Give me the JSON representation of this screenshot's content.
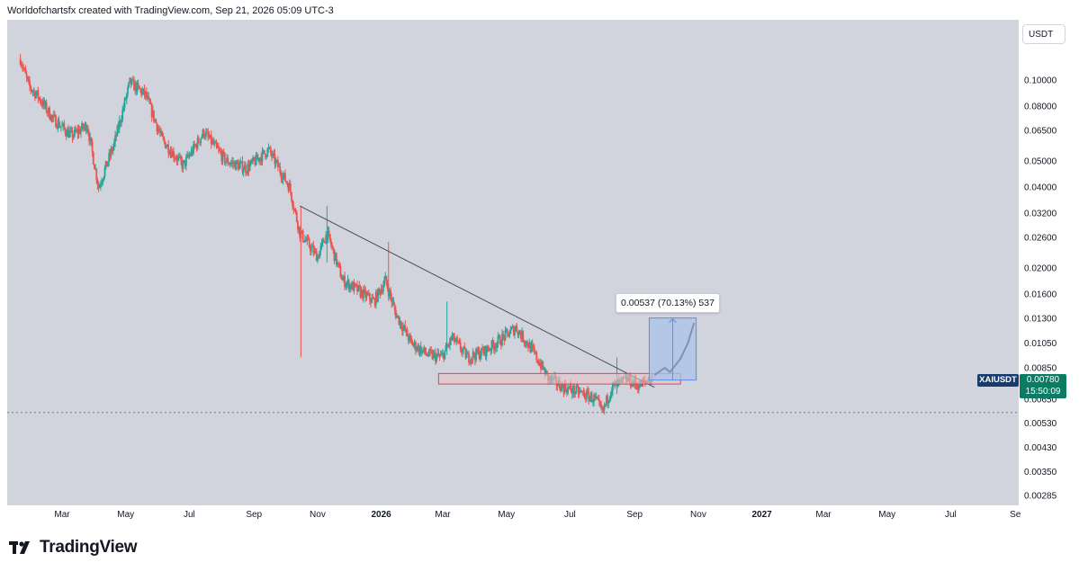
{
  "header": {
    "attribution": "Worldofchartsfx created with TradingView.com, Sep 21, 2026 05:09 UTC-3"
  },
  "currency_button": "USDT",
  "symbol_tag": "XAIUSDT",
  "price_tag": {
    "price": "0.00780",
    "countdown": "15:50:09"
  },
  "measure_label": "0.00537 (70.13%) 537",
  "brand": "TradingView",
  "colors": {
    "up": "#26a69a",
    "down": "#ef5350",
    "plot_bg": "#d1d4dc",
    "trendline": "#4a4e5a",
    "measure_fill": "#a9c3ea",
    "measure_line": "#5b8ee6",
    "support_box": "#e9c3c8",
    "support_border": "#d04a59",
    "projection": "#000000"
  },
  "chart_data": {
    "type": "candlestick",
    "symbol": "XAIUSDT",
    "y_axis": {
      "scale": "log",
      "ticks": [
        "0.10000",
        "0.08000",
        "0.06500",
        "0.05000",
        "0.04000",
        "0.03200",
        "0.02600",
        "0.02000",
        "0.01600",
        "0.01300",
        "0.01050",
        "0.00850",
        "0.00650",
        "0.00530",
        "0.00430",
        "0.00350",
        "0.00285"
      ],
      "range": [
        0.0027,
        0.13
      ]
    },
    "x_axis": {
      "ticks": [
        {
          "label": "Mar",
          "bold": false
        },
        {
          "label": "May",
          "bold": false
        },
        {
          "label": "Jul",
          "bold": false
        },
        {
          "label": "Sep",
          "bold": false
        },
        {
          "label": "Nov",
          "bold": false
        },
        {
          "label": "2026",
          "bold": true
        },
        {
          "label": "Mar",
          "bold": false
        },
        {
          "label": "May",
          "bold": false
        },
        {
          "label": "Jul",
          "bold": false
        },
        {
          "label": "Sep",
          "bold": false
        },
        {
          "label": "Nov",
          "bold": false
        },
        {
          "label": "2027",
          "bold": true
        },
        {
          "label": "Mar",
          "bold": false
        },
        {
          "label": "May",
          "bold": false
        },
        {
          "label": "Jul",
          "bold": false
        },
        {
          "label": "Se",
          "bold": false
        }
      ]
    },
    "price_path": [
      {
        "date": "2025-01-20",
        "price": 0.12
      },
      {
        "date": "2025-01-28",
        "price": 0.095
      },
      {
        "date": "2025-02-05",
        "price": 0.088
      },
      {
        "date": "2025-02-20",
        "price": 0.072
      },
      {
        "date": "2025-03-10",
        "price": 0.062
      },
      {
        "date": "2025-03-25",
        "price": 0.068
      },
      {
        "date": "2025-04-05",
        "price": 0.04
      },
      {
        "date": "2025-04-20",
        "price": 0.058
      },
      {
        "date": "2025-05-05",
        "price": 0.098
      },
      {
        "date": "2025-05-20",
        "price": 0.088
      },
      {
        "date": "2025-06-05",
        "price": 0.06
      },
      {
        "date": "2025-06-25",
        "price": 0.048
      },
      {
        "date": "2025-07-15",
        "price": 0.064
      },
      {
        "date": "2025-08-05",
        "price": 0.05
      },
      {
        "date": "2025-08-25",
        "price": 0.047
      },
      {
        "date": "2025-09-15",
        "price": 0.055
      },
      {
        "date": "2025-10-05",
        "price": 0.04
      },
      {
        "date": "2025-10-15",
        "price": 0.027
      },
      {
        "date": "2025-11-01",
        "price": 0.022
      },
      {
        "date": "2025-11-10",
        "price": 0.027
      },
      {
        "date": "2025-11-25",
        "price": 0.018
      },
      {
        "date": "2025-12-10",
        "price": 0.0165
      },
      {
        "date": "2025-12-25",
        "price": 0.015
      },
      {
        "date": "2026-01-05",
        "price": 0.018
      },
      {
        "date": "2026-01-15",
        "price": 0.0135
      },
      {
        "date": "2026-01-30",
        "price": 0.0105
      },
      {
        "date": "2026-02-15",
        "price": 0.0095
      },
      {
        "date": "2026-02-28",
        "price": 0.0093
      },
      {
        "date": "2026-03-10",
        "price": 0.011
      },
      {
        "date": "2026-03-25",
        "price": 0.0093
      },
      {
        "date": "2026-04-10",
        "price": 0.0098
      },
      {
        "date": "2026-04-25",
        "price": 0.0108
      },
      {
        "date": "2026-05-10",
        "price": 0.012
      },
      {
        "date": "2026-05-25",
        "price": 0.01
      },
      {
        "date": "2026-06-10",
        "price": 0.0078
      },
      {
        "date": "2026-06-25",
        "price": 0.0072
      },
      {
        "date": "2026-07-10",
        "price": 0.0069
      },
      {
        "date": "2026-07-25",
        "price": 0.0065
      },
      {
        "date": "2026-08-01",
        "price": 0.0058
      },
      {
        "date": "2026-08-10",
        "price": 0.0072
      },
      {
        "date": "2026-08-25",
        "price": 0.0077
      },
      {
        "date": "2026-09-05",
        "price": 0.0073
      },
      {
        "date": "2026-09-18",
        "price": 0.0078
      }
    ],
    "annotations": [
      {
        "kind": "trendline",
        "from": {
          "date": "2025-10-15",
          "price": 0.034
        },
        "to": {
          "date": "2026-09-20",
          "price": 0.0072
        }
      },
      {
        "kind": "support_zone",
        "from_date": "2026-02-25",
        "to_date": "2026-10-15",
        "low": 0.0074,
        "high": 0.0081
      },
      {
        "kind": "projection",
        "points": [
          {
            "date": "2026-09-20",
            "price": 0.008
          },
          {
            "date": "2026-09-30",
            "price": 0.0085
          },
          {
            "date": "2026-10-05",
            "price": 0.0082
          },
          {
            "date": "2026-10-15",
            "price": 0.0092
          },
          {
            "date": "2026-10-22",
            "price": 0.0105
          },
          {
            "date": "2026-10-28",
            "price": 0.0125
          }
        ]
      },
      {
        "kind": "measure",
        "from_price": 0.00766,
        "to_price": 0.01303,
        "from_date": "2026-09-15",
        "to_date": "2026-10-30",
        "label": "0.00537 (70.13%) 537"
      },
      {
        "kind": "price_line",
        "price": 0.0058
      }
    ]
  }
}
